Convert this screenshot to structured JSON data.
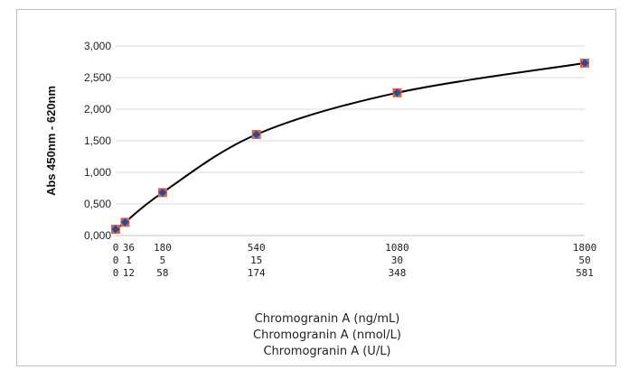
{
  "chart_data": {
    "type": "scatter",
    "title": "",
    "ylabel": "Abs 450nm - 620nm",
    "xlabels": [
      "Chromogranin A (ng/mL)",
      "Chromogranin A (nmol/L)",
      "Chromogranin A (U/L)"
    ],
    "ylim": [
      0,
      3
    ],
    "xlim": [
      0,
      1800
    ],
    "yticks": [
      "0,000",
      "0,500",
      "1,000",
      "1,500",
      "2,000",
      "2,500",
      "3,000"
    ],
    "grid": "horizontal",
    "x_tick_rows": [
      [
        "0",
        "36",
        "180",
        "540",
        "1080",
        "1800"
      ],
      [
        "0",
        "1",
        "5",
        "15",
        "30",
        "50"
      ],
      [
        "0",
        "12",
        "58",
        "174",
        "348",
        "581"
      ]
    ],
    "series": [
      {
        "x": [
          0,
          36,
          180,
          540,
          1080,
          1800
        ],
        "y": [
          0.1,
          0.21,
          0.68,
          1.6,
          2.26,
          2.73
        ],
        "marker_color": "#1f4e9a",
        "marker_outline": "#e0604a",
        "line_color": "#000000"
      }
    ]
  }
}
